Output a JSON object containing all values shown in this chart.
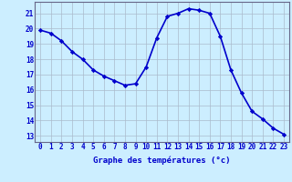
{
  "hours": [
    0,
    1,
    2,
    3,
    4,
    5,
    6,
    7,
    8,
    9,
    10,
    11,
    12,
    13,
    14,
    15,
    16,
    17,
    18,
    19,
    20,
    21,
    22,
    23
  ],
  "temps": [
    19.9,
    19.7,
    19.2,
    18.5,
    18.0,
    17.3,
    16.9,
    16.6,
    16.3,
    16.4,
    17.5,
    19.4,
    20.8,
    21.0,
    21.3,
    21.2,
    21.0,
    19.5,
    17.3,
    15.8,
    14.6,
    14.1,
    13.5,
    13.1
  ],
  "line_color": "#0000cc",
  "marker": "D",
  "marker_size": 2.2,
  "bg_color": "#cceeff",
  "grid_color": "#aabbcc",
  "ylabel_ticks": [
    13,
    14,
    15,
    16,
    17,
    18,
    19,
    20,
    21
  ],
  "ylim": [
    12.6,
    21.75
  ],
  "xlim": [
    -0.5,
    23.5
  ],
  "xlabel": "Graphe des températures (°c)",
  "xlabel_color": "#0000cc",
  "tick_color": "#0000cc",
  "linewidth": 1.2,
  "tick_fontsize": 5.5,
  "xlabel_fontsize": 6.5
}
